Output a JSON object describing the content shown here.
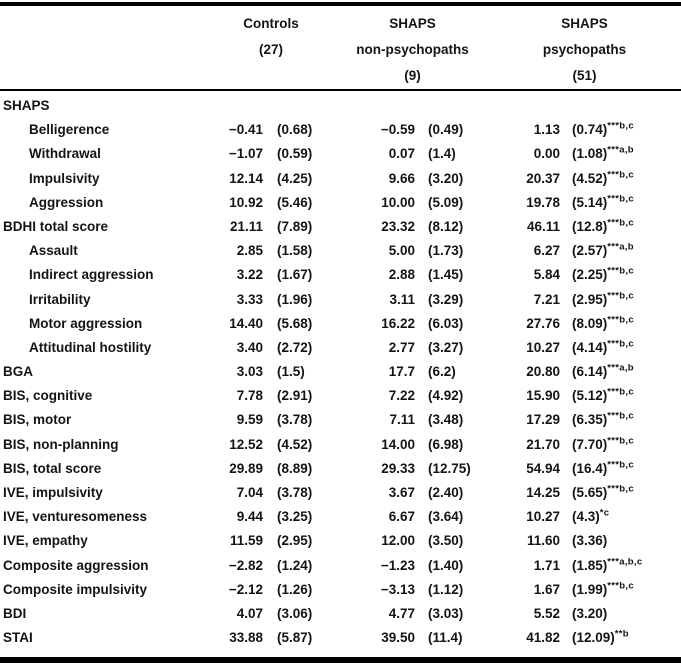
{
  "colors": {
    "background": "#ffffff",
    "text": "#141414",
    "rule": "#000000"
  },
  "table": {
    "columns": [
      {
        "line1": "Controls",
        "line2": "(27)",
        "line3": ""
      },
      {
        "line1": "SHAPS",
        "line2": "non-psychopaths",
        "line3": "(9)"
      },
      {
        "line1": "SHAPS",
        "line2": "psychopaths",
        "line3": "(51)"
      }
    ],
    "rows": [
      {
        "label": "SHAPS",
        "indent": false
      },
      {
        "label": "Belligerence",
        "indent": true,
        "c1": [
          "−0.41",
          "(0.68)"
        ],
        "c2": [
          "−0.59",
          "(0.49)"
        ],
        "c3": [
          "1.13",
          "(0.74)",
          "***b,c"
        ]
      },
      {
        "label": "Withdrawal",
        "indent": true,
        "c1": [
          "−1.07",
          "(0.59)"
        ],
        "c2": [
          "0.07",
          "(1.4)"
        ],
        "c3": [
          "0.00",
          "(1.08)",
          "***a,b"
        ]
      },
      {
        "label": "Impulsivity",
        "indent": true,
        "c1": [
          "12.14",
          "(4.25)"
        ],
        "c2": [
          "9.66",
          "(3.20)"
        ],
        "c3": [
          "20.37",
          "(4.52)",
          "***b,c"
        ]
      },
      {
        "label": "Aggression",
        "indent": true,
        "c1": [
          "10.92",
          "(5.46)"
        ],
        "c2": [
          "10.00",
          "(5.09)"
        ],
        "c3": [
          "19.78",
          "(5.14)",
          "***b,c"
        ]
      },
      {
        "label": "BDHI total score",
        "indent": false,
        "c1": [
          "21.11",
          "(7.89)"
        ],
        "c2": [
          "23.32",
          "(8.12)"
        ],
        "c3": [
          "46.11",
          "(12.8)",
          "***b,c"
        ]
      },
      {
        "label": "Assault",
        "indent": true,
        "c1": [
          "2.85",
          "(1.58)"
        ],
        "c2": [
          "5.00",
          "(1.73)"
        ],
        "c3": [
          "6.27",
          "(2.57)",
          "***a,b"
        ]
      },
      {
        "label": "Indirect aggression",
        "indent": true,
        "c1": [
          "3.22",
          "(1.67)"
        ],
        "c2": [
          "2.88",
          "(1.45)"
        ],
        "c3": [
          "5.84",
          "(2.25)",
          "***b,c"
        ]
      },
      {
        "label": "Irritability",
        "indent": true,
        "c1": [
          "3.33",
          "(1.96)"
        ],
        "c2": [
          "3.11",
          "(3.29)"
        ],
        "c3": [
          "7.21",
          "(2.95)",
          "***b,c"
        ]
      },
      {
        "label": "Motor aggression",
        "indent": true,
        "c1": [
          "14.40",
          "(5.68)"
        ],
        "c2": [
          "16.22",
          "(6.03)"
        ],
        "c3": [
          "27.76",
          "(8.09)",
          "***b,c"
        ]
      },
      {
        "label": "Attitudinal hostility",
        "indent": true,
        "c1": [
          "3.40",
          "(2.72)"
        ],
        "c2": [
          "2.77",
          "(3.27)"
        ],
        "c3": [
          "10.27",
          "(4.14)",
          "***b,c"
        ]
      },
      {
        "label": "BGA",
        "indent": false,
        "c1": [
          "3.03",
          "(1.5)"
        ],
        "c2": [
          "17.7",
          "(6.2)"
        ],
        "c3": [
          "20.80",
          "(6.14)",
          "***a,b"
        ]
      },
      {
        "label": "BIS, cognitive",
        "indent": false,
        "c1": [
          "7.78",
          "(2.91)"
        ],
        "c2": [
          "7.22",
          "(4.92)"
        ],
        "c3": [
          "15.90",
          "(5.12)",
          "***b,c"
        ]
      },
      {
        "label": "BIS, motor",
        "indent": false,
        "c1": [
          "9.59",
          "(3.78)"
        ],
        "c2": [
          "7.11",
          "(3.48)"
        ],
        "c3": [
          "17.29",
          "(6.35)",
          "***b,c"
        ]
      },
      {
        "label": "BIS, non-planning",
        "indent": false,
        "c1": [
          "12.52",
          "(4.52)"
        ],
        "c2": [
          "14.00",
          "(6.98)"
        ],
        "c3": [
          "21.70",
          "(7.70)",
          "***b,c"
        ]
      },
      {
        "label": "BIS, total score",
        "indent": false,
        "c1": [
          "29.89",
          "(8.89)"
        ],
        "c2": [
          "29.33",
          "(12.75)"
        ],
        "c3": [
          "54.94",
          "(16.4)",
          "***b,c"
        ]
      },
      {
        "label": "IVE, impulsivity",
        "indent": false,
        "c1": [
          "7.04",
          "(3.78)"
        ],
        "c2": [
          "3.67",
          "(2.40)"
        ],
        "c3": [
          "14.25",
          "(5.65)",
          "***b,c"
        ]
      },
      {
        "label": "IVE, venturesomeness",
        "indent": false,
        "c1": [
          "9.44",
          "(3.25)"
        ],
        "c2": [
          "6.67",
          "(3.64)"
        ],
        "c3": [
          "10.27",
          "(4.3)",
          "*c"
        ]
      },
      {
        "label": "IVE, empathy",
        "indent": false,
        "c1": [
          "11.59",
          "(2.95)"
        ],
        "c2": [
          "12.00",
          "(3.50)"
        ],
        "c3": [
          "11.60",
          "(3.36)",
          ""
        ]
      },
      {
        "label": "Composite aggression",
        "indent": false,
        "c1": [
          "−2.82",
          "(1.24)"
        ],
        "c2": [
          "−1.23",
          "(1.40)"
        ],
        "c3": [
          "1.71",
          "(1.85)",
          "***a,b,c"
        ]
      },
      {
        "label": "Composite impulsivity",
        "indent": false,
        "c1": [
          "−2.12",
          "(1.26)"
        ],
        "c2": [
          "−3.13",
          "(1.12)"
        ],
        "c3": [
          "1.67",
          "(1.99)",
          "***b,c"
        ]
      },
      {
        "label": "BDI",
        "indent": false,
        "c1": [
          "4.07",
          "(3.06)"
        ],
        "c2": [
          "4.77",
          "(3.03)"
        ],
        "c3": [
          "5.52",
          "(3.20)",
          ""
        ]
      },
      {
        "label": "STAI",
        "indent": false,
        "c1": [
          "33.88",
          "(5.87)"
        ],
        "c2": [
          "39.50",
          "(11.4)"
        ],
        "c3": [
          "41.82",
          "(12.09)",
          "**b"
        ]
      }
    ]
  }
}
